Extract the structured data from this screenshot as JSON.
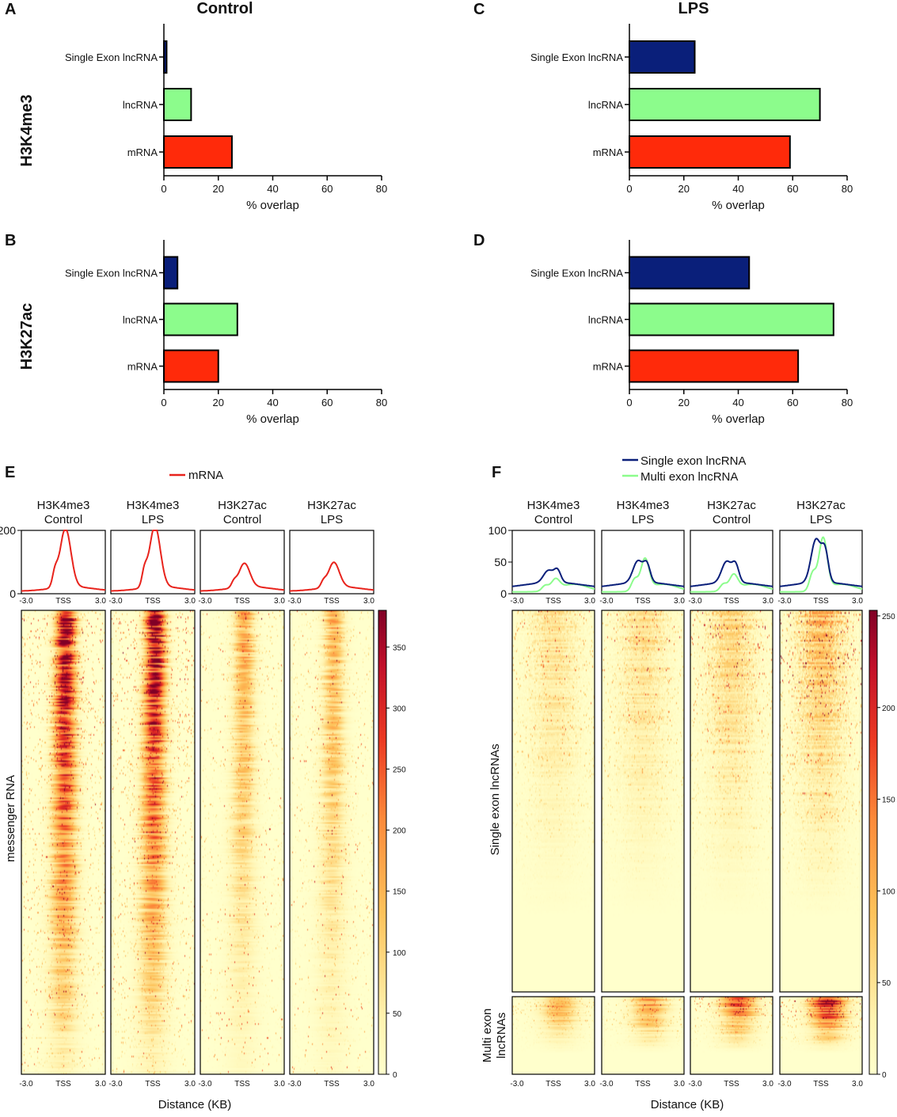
{
  "figure": {
    "panel_labels": [
      "A",
      "B",
      "C",
      "D",
      "E",
      "F"
    ],
    "col_titles": [
      "Control",
      "LPS"
    ],
    "row_titles": [
      "H3K4me3",
      "H3K27ac"
    ]
  },
  "chart_data": [
    {
      "id": "A",
      "type": "bar",
      "orientation": "horizontal",
      "title": "Control",
      "row": "H3K4me3",
      "categories": [
        "Single Exon lncRNA",
        "lncRNA",
        "mRNA"
      ],
      "values": [
        1,
        10,
        25
      ],
      "colors": [
        "#0a1f7a",
        "#8cfc8c",
        "#ff2a0a"
      ],
      "xlabel": "% overlap",
      "xlim": [
        0,
        80
      ],
      "xticks": [
        0,
        20,
        40,
        60,
        80
      ]
    },
    {
      "id": "B",
      "type": "bar",
      "orientation": "horizontal",
      "row": "H3K27ac",
      "categories": [
        "Single Exon lncRNA",
        "lncRNA",
        "mRNA"
      ],
      "values": [
        5,
        27,
        20
      ],
      "colors": [
        "#0a1f7a",
        "#8cfc8c",
        "#ff2a0a"
      ],
      "xlabel": "% overlap",
      "xlim": [
        0,
        80
      ],
      "xticks": [
        0,
        20,
        40,
        60,
        80
      ]
    },
    {
      "id": "C",
      "type": "bar",
      "orientation": "horizontal",
      "title": "LPS",
      "row": "H3K4me3",
      "categories": [
        "Single Exon lncRNA",
        "lncRNA",
        "mRNA"
      ],
      "values": [
        24,
        70,
        59
      ],
      "colors": [
        "#0a1f7a",
        "#8cfc8c",
        "#ff2a0a"
      ],
      "xlabel": "% overlap",
      "xlim": [
        0,
        80
      ],
      "xticks": [
        0,
        20,
        40,
        60,
        80
      ]
    },
    {
      "id": "D",
      "type": "bar",
      "orientation": "horizontal",
      "row": "H3K27ac",
      "categories": [
        "Single Exon lncRNA",
        "lncRNA",
        "mRNA"
      ],
      "values": [
        44,
        75,
        62
      ],
      "colors": [
        "#0a1f7a",
        "#8cfc8c",
        "#ff2a0a"
      ],
      "xlabel": "% overlap",
      "xlim": [
        0,
        80
      ],
      "xticks": [
        0,
        20,
        40,
        60,
        80
      ]
    },
    {
      "id": "E",
      "type": "heatmap",
      "legend": [
        {
          "name": "mRNA",
          "color": "#e8231c"
        }
      ],
      "columns": [
        {
          "mark": "H3K4me3",
          "condition": "Control",
          "profile_peak": 185,
          "pre_shoulder": 75,
          "intensity": 1.0
        },
        {
          "mark": "H3K4me3",
          "condition": "LPS",
          "profile_peak": 192,
          "pre_shoulder": 80,
          "intensity": 1.0
        },
        {
          "mark": "H3K27ac",
          "condition": "Control",
          "profile_peak": 75,
          "pre_shoulder": 30,
          "intensity": 0.45
        },
        {
          "mark": "H3K27ac",
          "condition": "LPS",
          "profile_peak": 78,
          "pre_shoulder": 30,
          "intensity": 0.42
        }
      ],
      "profile_ylim": [
        0,
        200
      ],
      "profile_yticks": [
        0,
        200
      ],
      "xticks": [
        "-3.0",
        "TSS",
        "3.0"
      ],
      "row_label": "messenger RNA",
      "xlabel": "Distance (KB)",
      "colorbar_ticks": [
        0,
        50,
        100,
        150,
        200,
        250,
        300,
        350
      ],
      "colorbar_max": 380
    },
    {
      "id": "F",
      "type": "heatmap",
      "legend": [
        {
          "name": "Single exon lncRNA",
          "color": "#0a1f7a"
        },
        {
          "name": "Multi exon lncRNA",
          "color": "#8cfc8c"
        }
      ],
      "columns": [
        {
          "mark": "H3K4me3",
          "condition": "Control",
          "single_peak": 33,
          "multi_peak": 28,
          "intensity": 0.55
        },
        {
          "mark": "H3K4me3",
          "condition": "LPS",
          "single_peak": 48,
          "multi_peak": 60,
          "intensity": 0.6
        },
        {
          "mark": "H3K27ac",
          "condition": "Control",
          "single_peak": 47,
          "multi_peak": 35,
          "intensity": 0.7
        },
        {
          "mark": "H3K27ac",
          "condition": "LPS",
          "single_peak": 82,
          "multi_peak": 93,
          "intensity": 1.0
        }
      ],
      "profile_ylim": [
        0,
        100
      ],
      "profile_yticks": [
        0,
        50,
        100
      ],
      "xticks": [
        "-3.0",
        "TSS",
        "3.0"
      ],
      "row_labels": [
        "Single exon lncRNAs",
        "Multi exon lncRNAs"
      ],
      "xlabel": "Distance (KB)",
      "colorbar_ticks": [
        0,
        50,
        100,
        150,
        200,
        250
      ],
      "colorbar_max": 253
    }
  ]
}
